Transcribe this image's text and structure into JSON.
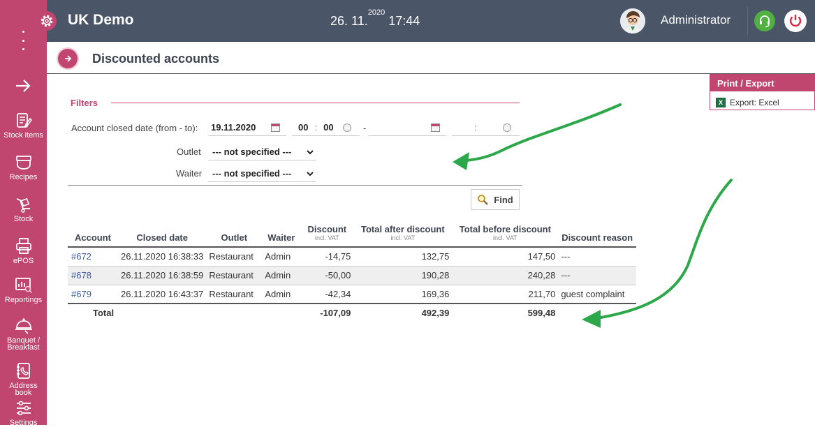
{
  "app": {
    "title": "UK Demo"
  },
  "clock": {
    "date": "26. 11.",
    "year": "2020",
    "time": "17:44"
  },
  "user": {
    "name": "Administrator"
  },
  "sidebar": {
    "items": [
      {
        "label": "Stock items",
        "icon": "stock-items-icon"
      },
      {
        "label": "Recipes",
        "icon": "recipes-icon"
      },
      {
        "label": "Stock",
        "icon": "stock-icon"
      },
      {
        "label": "ePOS",
        "icon": "epos-icon"
      },
      {
        "label": "Reportings",
        "icon": "reportings-icon"
      },
      {
        "label": "Banquet / Breakfast",
        "icon": "banquet-icon"
      },
      {
        "label": "Address book",
        "icon": "address-book-icon"
      },
      {
        "label": "Settings",
        "icon": "settings-icon"
      }
    ]
  },
  "page": {
    "title": "Discounted accounts"
  },
  "print_export": {
    "title": "Print / Export",
    "items": [
      {
        "label": "Export: Excel"
      }
    ]
  },
  "filters": {
    "title": "Filters",
    "date_label": "Account closed date (from - to):",
    "date_from": "19.11.2020",
    "time_from_h": "00",
    "time_from_m": "00",
    "range_sep": "-",
    "time_sep": ":",
    "outlet_label": "Outlet",
    "outlet_value": "--- not specified ---",
    "waiter_label": "Waiter",
    "waiter_value": "--- not specified ---",
    "find_label": "Find"
  },
  "table": {
    "headers": {
      "account": "Account",
      "closed_date": "Closed date",
      "outlet": "Outlet",
      "waiter": "Waiter",
      "discount": "Discount",
      "discount_sub": "incl. VAT",
      "after": "Total after discount",
      "after_sub": "incl. VAT",
      "before": "Total before discount",
      "before_sub": "incl. VAT",
      "reason": "Discount reason"
    },
    "rows": [
      {
        "account": "#672",
        "date": "26.11.2020 16:38:33",
        "outlet": "Restaurant",
        "waiter": "Admin",
        "discount": "-14,75",
        "after": "132,75",
        "before": "147,50",
        "reason": "---"
      },
      {
        "account": "#678",
        "date": "26.11.2020 16:38:59",
        "outlet": "Restaurant",
        "waiter": "Admin",
        "discount": "-50,00",
        "after": "190,28",
        "before": "240,28",
        "reason": "---"
      },
      {
        "account": "#679",
        "date": "26.11.2020 16:43:37",
        "outlet": "Restaurant",
        "waiter": "Admin",
        "discount": "-42,34",
        "after": "169,36",
        "before": "211,70",
        "reason": "guest complaint"
      }
    ],
    "total": {
      "label": "Total",
      "discount": "-107,09",
      "after": "492,39",
      "before": "599,48"
    }
  },
  "colors": {
    "brand": "#c0466f",
    "topbar": "#4a5568",
    "annotation": "#2ca84a"
  }
}
